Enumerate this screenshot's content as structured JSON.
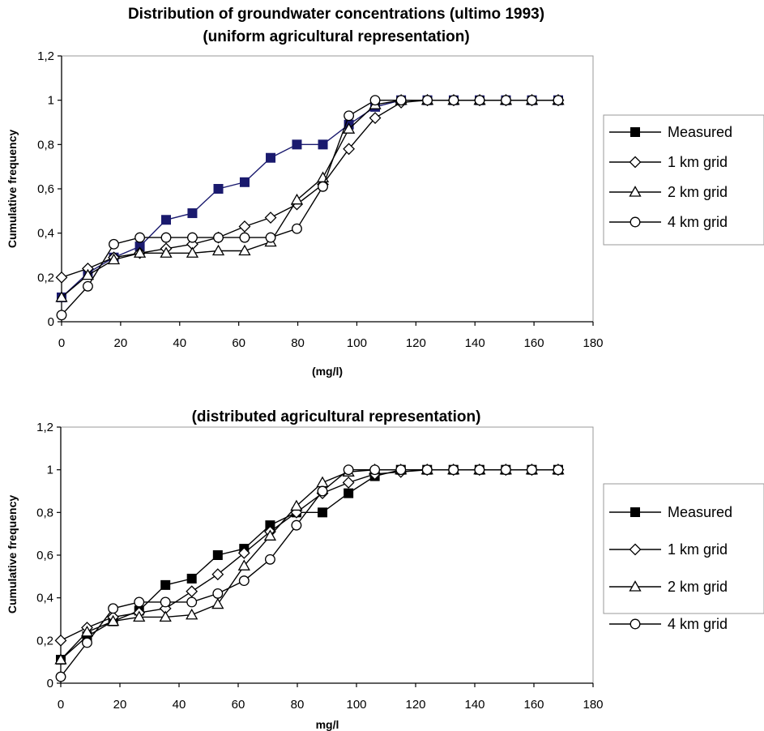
{
  "chart_data": [
    {
      "type": "line",
      "title": "Distribution of groundwater concentrations (ultimo 1993)",
      "subtitle": "(uniform agricultural representation)",
      "xlabel": "(mg/l)",
      "ylabel": "Cumulative frequency",
      "xlim": [
        0,
        180
      ],
      "ylim": [
        0,
        1.2
      ],
      "x_ticks": [
        "0",
        "20",
        "40",
        "60",
        "80",
        "100",
        "120",
        "140",
        "160",
        "180"
      ],
      "y_ticks": [
        "0",
        "0,2",
        "0,4",
        "0,6",
        "0,8",
        "1",
        "1,2"
      ],
      "grid": false,
      "legend_position": "right",
      "series": [
        {
          "name": "Measured",
          "marker": "square-filled",
          "color": "#1a1a6e",
          "x": [
            0,
            8.9,
            17.7,
            26.5,
            35.4,
            44.3,
            53.1,
            62,
            70.8,
            79.7,
            88.5,
            97.3,
            106.2,
            115,
            123.9,
            132.8,
            141.6,
            150.5,
            159.3,
            168.2
          ],
          "y": [
            0.11,
            0.22,
            0.29,
            0.34,
            0.46,
            0.49,
            0.6,
            0.63,
            0.74,
            0.8,
            0.8,
            0.89,
            0.97,
            1,
            1,
            1,
            1,
            1,
            1,
            1
          ]
        },
        {
          "name": "1 km grid",
          "marker": "diamond-open",
          "color": "#000000",
          "x": [
            0,
            8.9,
            17.7,
            26.5,
            35.4,
            44.3,
            53.1,
            62,
            70.8,
            79.7,
            88.5,
            97.3,
            106.2,
            115,
            123.9,
            132.8,
            141.6,
            150.5,
            159.3,
            168.2
          ],
          "y": [
            0.2,
            0.24,
            0.29,
            0.31,
            0.33,
            0.35,
            0.38,
            0.43,
            0.47,
            0.53,
            0.62,
            0.78,
            0.92,
            0.99,
            1,
            1,
            1,
            1,
            1,
            1
          ]
        },
        {
          "name": "2 km grid",
          "marker": "triangle-open",
          "color": "#000000",
          "x": [
            0,
            8.9,
            17.7,
            26.5,
            35.4,
            44.3,
            53.1,
            62,
            70.8,
            79.7,
            88.5,
            97.3,
            106.2,
            115,
            123.9,
            132.8,
            141.6,
            150.5,
            159.3,
            168.2
          ],
          "y": [
            0.11,
            0.21,
            0.28,
            0.31,
            0.31,
            0.31,
            0.32,
            0.32,
            0.36,
            0.55,
            0.65,
            0.87,
            0.98,
            1,
            1,
            1,
            1,
            1,
            1,
            1
          ]
        },
        {
          "name": "4 km grid",
          "marker": "circle-open",
          "color": "#000000",
          "x": [
            0,
            8.9,
            17.7,
            26.5,
            35.4,
            44.3,
            53.1,
            62,
            70.8,
            79.7,
            88.5,
            97.3,
            106.2,
            115,
            123.9,
            132.8,
            141.6,
            150.5,
            159.3,
            168.2
          ],
          "y": [
            0.03,
            0.16,
            0.35,
            0.38,
            0.38,
            0.38,
            0.38,
            0.38,
            0.38,
            0.42,
            0.61,
            0.93,
            1,
            1,
            1,
            1,
            1,
            1,
            1,
            1
          ]
        }
      ]
    },
    {
      "type": "line",
      "title": "",
      "subtitle": "(distributed agricultural representation)",
      "xlabel": "mg/l",
      "ylabel": "Cumulative frequency",
      "xlim": [
        0,
        180
      ],
      "ylim": [
        0,
        1.2
      ],
      "x_ticks": [
        "0",
        "20",
        "40",
        "60",
        "80",
        "100",
        "120",
        "140",
        "160",
        "180"
      ],
      "y_ticks": [
        "0",
        "0,2",
        "0,4",
        "0,6",
        "0,8",
        "1",
        "1,2"
      ],
      "grid": false,
      "legend_position": "right",
      "series": [
        {
          "name": "Measured",
          "marker": "square-filled",
          "color": "#000000",
          "x": [
            0,
            8.9,
            17.7,
            26.5,
            35.4,
            44.3,
            53.1,
            62,
            70.8,
            79.7,
            88.5,
            97.3,
            106.2,
            115,
            123.9,
            132.8,
            141.6,
            150.5,
            159.3,
            168.2
          ],
          "y": [
            0.11,
            0.22,
            0.29,
            0.34,
            0.46,
            0.49,
            0.6,
            0.63,
            0.74,
            0.8,
            0.8,
            0.89,
            0.97,
            1,
            1,
            1,
            1,
            1,
            1,
            1
          ]
        },
        {
          "name": "1 km grid",
          "marker": "diamond-open",
          "color": "#000000",
          "x": [
            0,
            8.9,
            17.7,
            26.5,
            35.4,
            44.3,
            53.1,
            62,
            70.8,
            79.7,
            88.5,
            97.3,
            106.2,
            115,
            123.9,
            132.8,
            141.6,
            150.5,
            159.3,
            168.2
          ],
          "y": [
            0.2,
            0.26,
            0.31,
            0.33,
            0.35,
            0.43,
            0.51,
            0.61,
            0.71,
            0.8,
            0.89,
            0.94,
            0.98,
            0.99,
            1,
            1,
            1,
            1,
            1,
            1
          ]
        },
        {
          "name": "2 km grid",
          "marker": "triangle-open",
          "color": "#000000",
          "x": [
            0,
            8.9,
            17.7,
            26.5,
            35.4,
            44.3,
            53.1,
            62,
            70.8,
            79.7,
            88.5,
            97.3,
            106.2,
            115,
            123.9,
            132.8,
            141.6,
            150.5,
            159.3,
            168.2
          ],
          "y": [
            0.11,
            0.24,
            0.29,
            0.31,
            0.31,
            0.32,
            0.37,
            0.55,
            0.69,
            0.83,
            0.94,
            0.99,
            1,
            1,
            1,
            1,
            1,
            1,
            1,
            1
          ]
        },
        {
          "name": "4 km grid",
          "marker": "circle-open",
          "color": "#000000",
          "x": [
            0,
            8.9,
            17.7,
            26.5,
            35.4,
            44.3,
            53.1,
            62,
            70.8,
            79.7,
            88.5,
            97.3,
            106.2,
            115,
            123.9,
            132.8,
            141.6,
            150.5,
            159.3,
            168.2
          ],
          "y": [
            0.03,
            0.19,
            0.35,
            0.38,
            0.38,
            0.38,
            0.42,
            0.48,
            0.58,
            0.74,
            0.9,
            1,
            1,
            1,
            1,
            1,
            1,
            1,
            1,
            1
          ]
        }
      ]
    }
  ]
}
